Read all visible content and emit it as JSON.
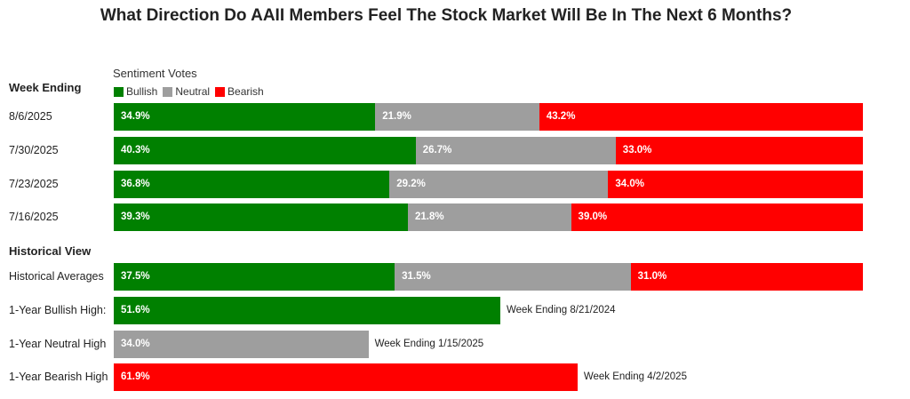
{
  "title": "What Direction Do AAII Members Feel The Stock Market Will Be In The Next 6 Months?",
  "legend_title": "Sentiment Votes",
  "sections": {
    "weekly": "Week Ending",
    "historical": "Historical View"
  },
  "colors": {
    "Bullish": "#008000",
    "Neutral": "#9e9e9e",
    "Bearish": "#ff0000"
  },
  "chart_data": {
    "type": "bar",
    "orientation": "horizontal",
    "stacked": true,
    "legend": [
      "Bullish",
      "Neutral",
      "Bearish"
    ],
    "rows": [
      {
        "label": "8/6/2025",
        "group": "weekly",
        "values": {
          "Bullish": 34.9,
          "Neutral": 21.9,
          "Bearish": 43.2
        },
        "value_labels": {
          "Bullish": "34.9%",
          "Neutral": "21.9%",
          "Bearish": "43.2%"
        }
      },
      {
        "label": "7/30/2025",
        "group": "weekly",
        "values": {
          "Bullish": 40.3,
          "Neutral": 26.7,
          "Bearish": 33.0
        },
        "value_labels": {
          "Bullish": "40.3%",
          "Neutral": "26.7%",
          "Bearish": "33.0%"
        }
      },
      {
        "label": "7/23/2025",
        "group": "weekly",
        "values": {
          "Bullish": 36.8,
          "Neutral": 29.2,
          "Bearish": 34.0
        },
        "value_labels": {
          "Bullish": "36.8%",
          "Neutral": "29.2%",
          "Bearish": "34.0%"
        }
      },
      {
        "label": "7/16/2025",
        "group": "weekly",
        "values": {
          "Bullish": 39.3,
          "Neutral": 21.8,
          "Bearish": 39.0
        },
        "value_labels": {
          "Bullish": "39.3%",
          "Neutral": "21.8%",
          "Bearish": "39.0%"
        }
      },
      {
        "label": "Historical Averages",
        "group": "historical",
        "values": {
          "Bullish": 37.5,
          "Neutral": 31.5,
          "Bearish": 31.0
        },
        "value_labels": {
          "Bullish": "37.5%",
          "Neutral": "31.5%",
          "Bearish": "31.0%"
        }
      },
      {
        "label": "1-Year Bullish High:",
        "group": "historical",
        "values": {
          "Bullish": 51.6
        },
        "value_labels": {
          "Bullish": "51.6%"
        },
        "note": "Week Ending 8/21/2024"
      },
      {
        "label": "1-Year Neutral High",
        "group": "historical",
        "values": {
          "Neutral": 34.0
        },
        "value_labels": {
          "Neutral": "34.0%"
        },
        "note": "Week Ending 1/15/2025"
      },
      {
        "label": "1-Year Bearish High",
        "group": "historical",
        "values": {
          "Bearish": 61.9
        },
        "value_labels": {
          "Bearish": "61.9%"
        },
        "note": "Week Ending 4/2/2025"
      }
    ],
    "xlim": [
      0,
      100
    ]
  }
}
